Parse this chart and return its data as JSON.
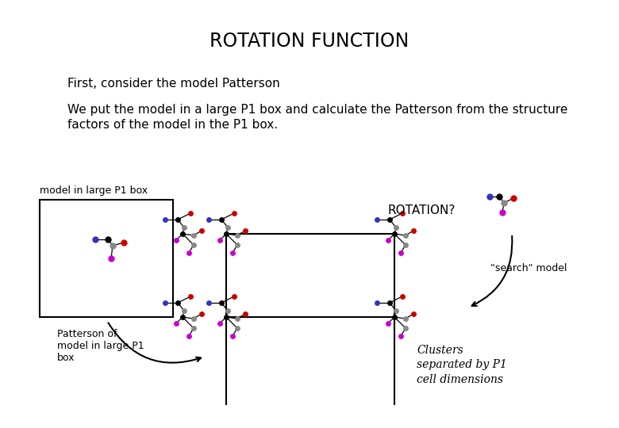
{
  "title": "ROTATION FUNCTION",
  "line1": "First, consider the model Patterson",
  "line2a": "We put the model in a large P1 box and calculate the Patterson from the structure",
  "line2b": "factors of the model in the P1 box.",
  "label_box": "model in large P1 box",
  "label_patterson": "Patterson of\nmodel in large P1\nbox",
  "label_rotation": "ROTATION?",
  "label_search": "\"search\" model",
  "label_clusters": "Clusters\nseparated by P1\ncell dimensions",
  "bg_color": "#ffffff",
  "node_colors": {
    "blue": "#3333bb",
    "black": "#000000",
    "red": "#cc0000",
    "gray": "#888888",
    "magenta": "#cc00cc"
  }
}
